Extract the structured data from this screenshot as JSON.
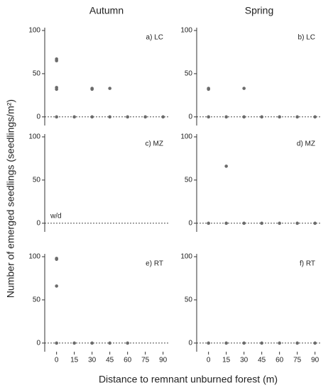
{
  "column_titles": [
    "Autumn",
    "Spring"
  ],
  "y_label": "Number of emerged seedlings (seedlings/m²)",
  "x_label": "Distance to remnant unburned forest (m)",
  "chart_data": [
    {
      "type": "scatter",
      "annotation": "a) LC",
      "color": "#6b6b6b",
      "hline": 0,
      "x": [
        0,
        0,
        0,
        0,
        30,
        30,
        45,
        0,
        15,
        30,
        45,
        60,
        75,
        90
      ],
      "values": [
        67,
        65,
        34,
        32,
        33,
        32,
        33,
        0,
        0,
        0,
        0,
        0,
        0,
        0
      ],
      "xlim": [
        -10,
        95
      ],
      "ylim": [
        -10,
        100
      ],
      "yticks": [
        0,
        50,
        100
      ]
    },
    {
      "type": "scatter",
      "annotation": "b) LC",
      "color": "#6b6b6b",
      "hline": 0,
      "x": [
        0,
        0,
        30,
        0,
        15,
        30,
        45,
        60,
        75,
        90
      ],
      "values": [
        33,
        32,
        33,
        0,
        0,
        0,
        0,
        0,
        0,
        0
      ],
      "xlim": [
        -10,
        95
      ],
      "ylim": [
        -10,
        100
      ],
      "yticks": [
        0,
        50,
        100
      ]
    },
    {
      "type": "scatter",
      "annotation": "c) MZ",
      "note": "w/d",
      "color": "#6b6b6b",
      "hline": 0,
      "x": [],
      "values": [],
      "xlim": [
        -10,
        95
      ],
      "ylim": [
        -10,
        100
      ],
      "yticks": [
        0,
        50,
        100
      ]
    },
    {
      "type": "scatter",
      "annotation": "d) MZ",
      "color": "#6b6b6b",
      "hline": 0,
      "x": [
        15,
        0,
        15,
        30,
        45,
        60,
        75,
        90
      ],
      "values": [
        66,
        0,
        0,
        0,
        0,
        0,
        0,
        0
      ],
      "xlim": [
        -10,
        95
      ],
      "ylim": [
        -10,
        100
      ],
      "yticks": [
        0,
        50,
        100
      ]
    },
    {
      "type": "scatter",
      "annotation": "e) RT",
      "color": "#6b6b6b",
      "hline": 0,
      "x": [
        0,
        0,
        0,
        0,
        15,
        30,
        45,
        60
      ],
      "values": [
        98,
        97,
        66,
        0,
        0,
        0,
        0,
        0
      ],
      "xlim": [
        -10,
        95
      ],
      "ylim": [
        -10,
        100
      ],
      "yticks": [
        0,
        50,
        100
      ],
      "xticks": [
        0,
        15,
        30,
        45,
        60,
        75,
        90
      ]
    },
    {
      "type": "scatter",
      "annotation": "f) RT",
      "color": "#6b6b6b",
      "hline": 0,
      "x": [
        0,
        15,
        30,
        45,
        60,
        75,
        90
      ],
      "values": [
        0,
        0,
        0,
        0,
        0,
        0,
        0
      ],
      "xlim": [
        -10,
        95
      ],
      "ylim": [
        -10,
        100
      ],
      "yticks": [
        0,
        50,
        100
      ],
      "xticks": [
        0,
        15,
        30,
        45,
        60,
        75,
        90
      ]
    }
  ]
}
